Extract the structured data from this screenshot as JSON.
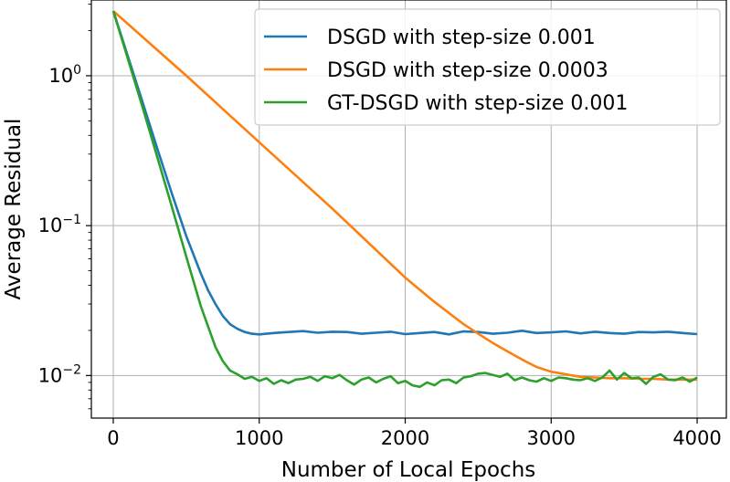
{
  "chart_data": {
    "type": "line",
    "title": "",
    "xlabel": "Number of Local Epochs",
    "ylabel": "Average Residual",
    "xlim": [
      -150,
      4200
    ],
    "ylim": [
      0.0052,
      3.2
    ],
    "yscale": "log",
    "grid": true,
    "legend_position": "top-right",
    "x_ticks": [
      0,
      1000,
      2000,
      3000,
      4000
    ],
    "x_tick_labels": [
      "0",
      "1000",
      "2000",
      "3000",
      "4000"
    ],
    "y_ticks": [
      1,
      0.1,
      0.01
    ],
    "y_tick_labels": [
      {
        "base": "10",
        "exp": "0"
      },
      {
        "base": "10",
        "exp": "−1"
      },
      {
        "base": "10",
        "exp": "−2"
      }
    ],
    "colors": {
      "DSGD with step-size 0.001": "#1f77b4",
      "DSGD with step-size 0.0003": "#ff7f0e",
      "GT-DSGD with step-size 0.001": "#2ca02c"
    },
    "series": [
      {
        "name": "DSGD with step-size 0.001",
        "color": "#1f77b4",
        "x": [
          0,
          100,
          200,
          300,
          400,
          500,
          600,
          650,
          700,
          750,
          800,
          850,
          900,
          950,
          1000,
          1100,
          1200,
          1300,
          1400,
          1500,
          1600,
          1700,
          1800,
          1900,
          2000,
          2100,
          2200,
          2300,
          2400,
          2500,
          2600,
          2700,
          2800,
          2900,
          3000,
          3100,
          3200,
          3300,
          3400,
          3500,
          3600,
          3700,
          3800,
          3900,
          4000
        ],
        "y": [
          2.7,
          1.35,
          0.67,
          0.33,
          0.165,
          0.085,
          0.048,
          0.037,
          0.03,
          0.025,
          0.022,
          0.0205,
          0.0195,
          0.019,
          0.0188,
          0.0192,
          0.0195,
          0.0198,
          0.0193,
          0.0196,
          0.0195,
          0.019,
          0.0193,
          0.0196,
          0.0189,
          0.0192,
          0.0195,
          0.0188,
          0.0197,
          0.0195,
          0.019,
          0.0193,
          0.0199,
          0.0192,
          0.0194,
          0.0197,
          0.0191,
          0.0196,
          0.0192,
          0.019,
          0.0195,
          0.0194,
          0.0196,
          0.0192,
          0.0189
        ]
      },
      {
        "name": "DSGD with step-size 0.0003",
        "color": "#ff7f0e",
        "x": [
          0,
          500,
          1000,
          1500,
          2000,
          2200,
          2400,
          2500,
          2600,
          2700,
          2800,
          2900,
          3000,
          3100,
          3200,
          3300,
          3400,
          3500,
          3600,
          3700,
          3800,
          3900,
          4000
        ],
        "y": [
          2.7,
          1.0,
          0.36,
          0.13,
          0.045,
          0.031,
          0.022,
          0.019,
          0.0165,
          0.0145,
          0.0128,
          0.0114,
          0.0106,
          0.0102,
          0.0098,
          0.0097,
          0.0096,
          0.0096,
          0.0095,
          0.0095,
          0.0094,
          0.0094,
          0.0094
        ]
      },
      {
        "name": "GT-DSGD with step-size 0.001",
        "color": "#2ca02c",
        "x": [
          0,
          100,
          200,
          300,
          400,
          500,
          600,
          700,
          750,
          800,
          850,
          900,
          950,
          1000,
          1050,
          1100,
          1150,
          1200,
          1250,
          1300,
          1350,
          1400,
          1450,
          1500,
          1550,
          1600,
          1650,
          1700,
          1750,
          1800,
          1850,
          1900,
          1950,
          2000,
          2050,
          2100,
          2150,
          2200,
          2250,
          2300,
          2350,
          2400,
          2450,
          2500,
          2550,
          2600,
          2650,
          2700,
          2750,
          2800,
          2850,
          2900,
          2950,
          3000,
          3050,
          3100,
          3150,
          3200,
          3250,
          3300,
          3350,
          3400,
          3450,
          3500,
          3550,
          3600,
          3650,
          3700,
          3750,
          3800,
          3850,
          3900,
          3950,
          4000
        ],
        "y": [
          2.7,
          1.3,
          0.62,
          0.29,
          0.135,
          0.062,
          0.029,
          0.0155,
          0.0125,
          0.0108,
          0.0102,
          0.0095,
          0.0098,
          0.0092,
          0.0096,
          0.0088,
          0.0093,
          0.0089,
          0.0094,
          0.0095,
          0.0098,
          0.0092,
          0.0099,
          0.0096,
          0.0101,
          0.0093,
          0.0087,
          0.0094,
          0.0097,
          0.009,
          0.0095,
          0.0099,
          0.0089,
          0.0092,
          0.0086,
          0.0084,
          0.009,
          0.0086,
          0.0093,
          0.0094,
          0.0089,
          0.0097,
          0.0099,
          0.0103,
          0.0104,
          0.0101,
          0.0098,
          0.0103,
          0.0093,
          0.0097,
          0.0093,
          0.0091,
          0.0096,
          0.0092,
          0.0097,
          0.0096,
          0.0094,
          0.0093,
          0.0096,
          0.0092,
          0.0097,
          0.0108,
          0.0094,
          0.0104,
          0.0096,
          0.0097,
          0.0088,
          0.0098,
          0.0102,
          0.0094,
          0.0093,
          0.0097,
          0.0091,
          0.0097
        ]
      }
    ]
  }
}
